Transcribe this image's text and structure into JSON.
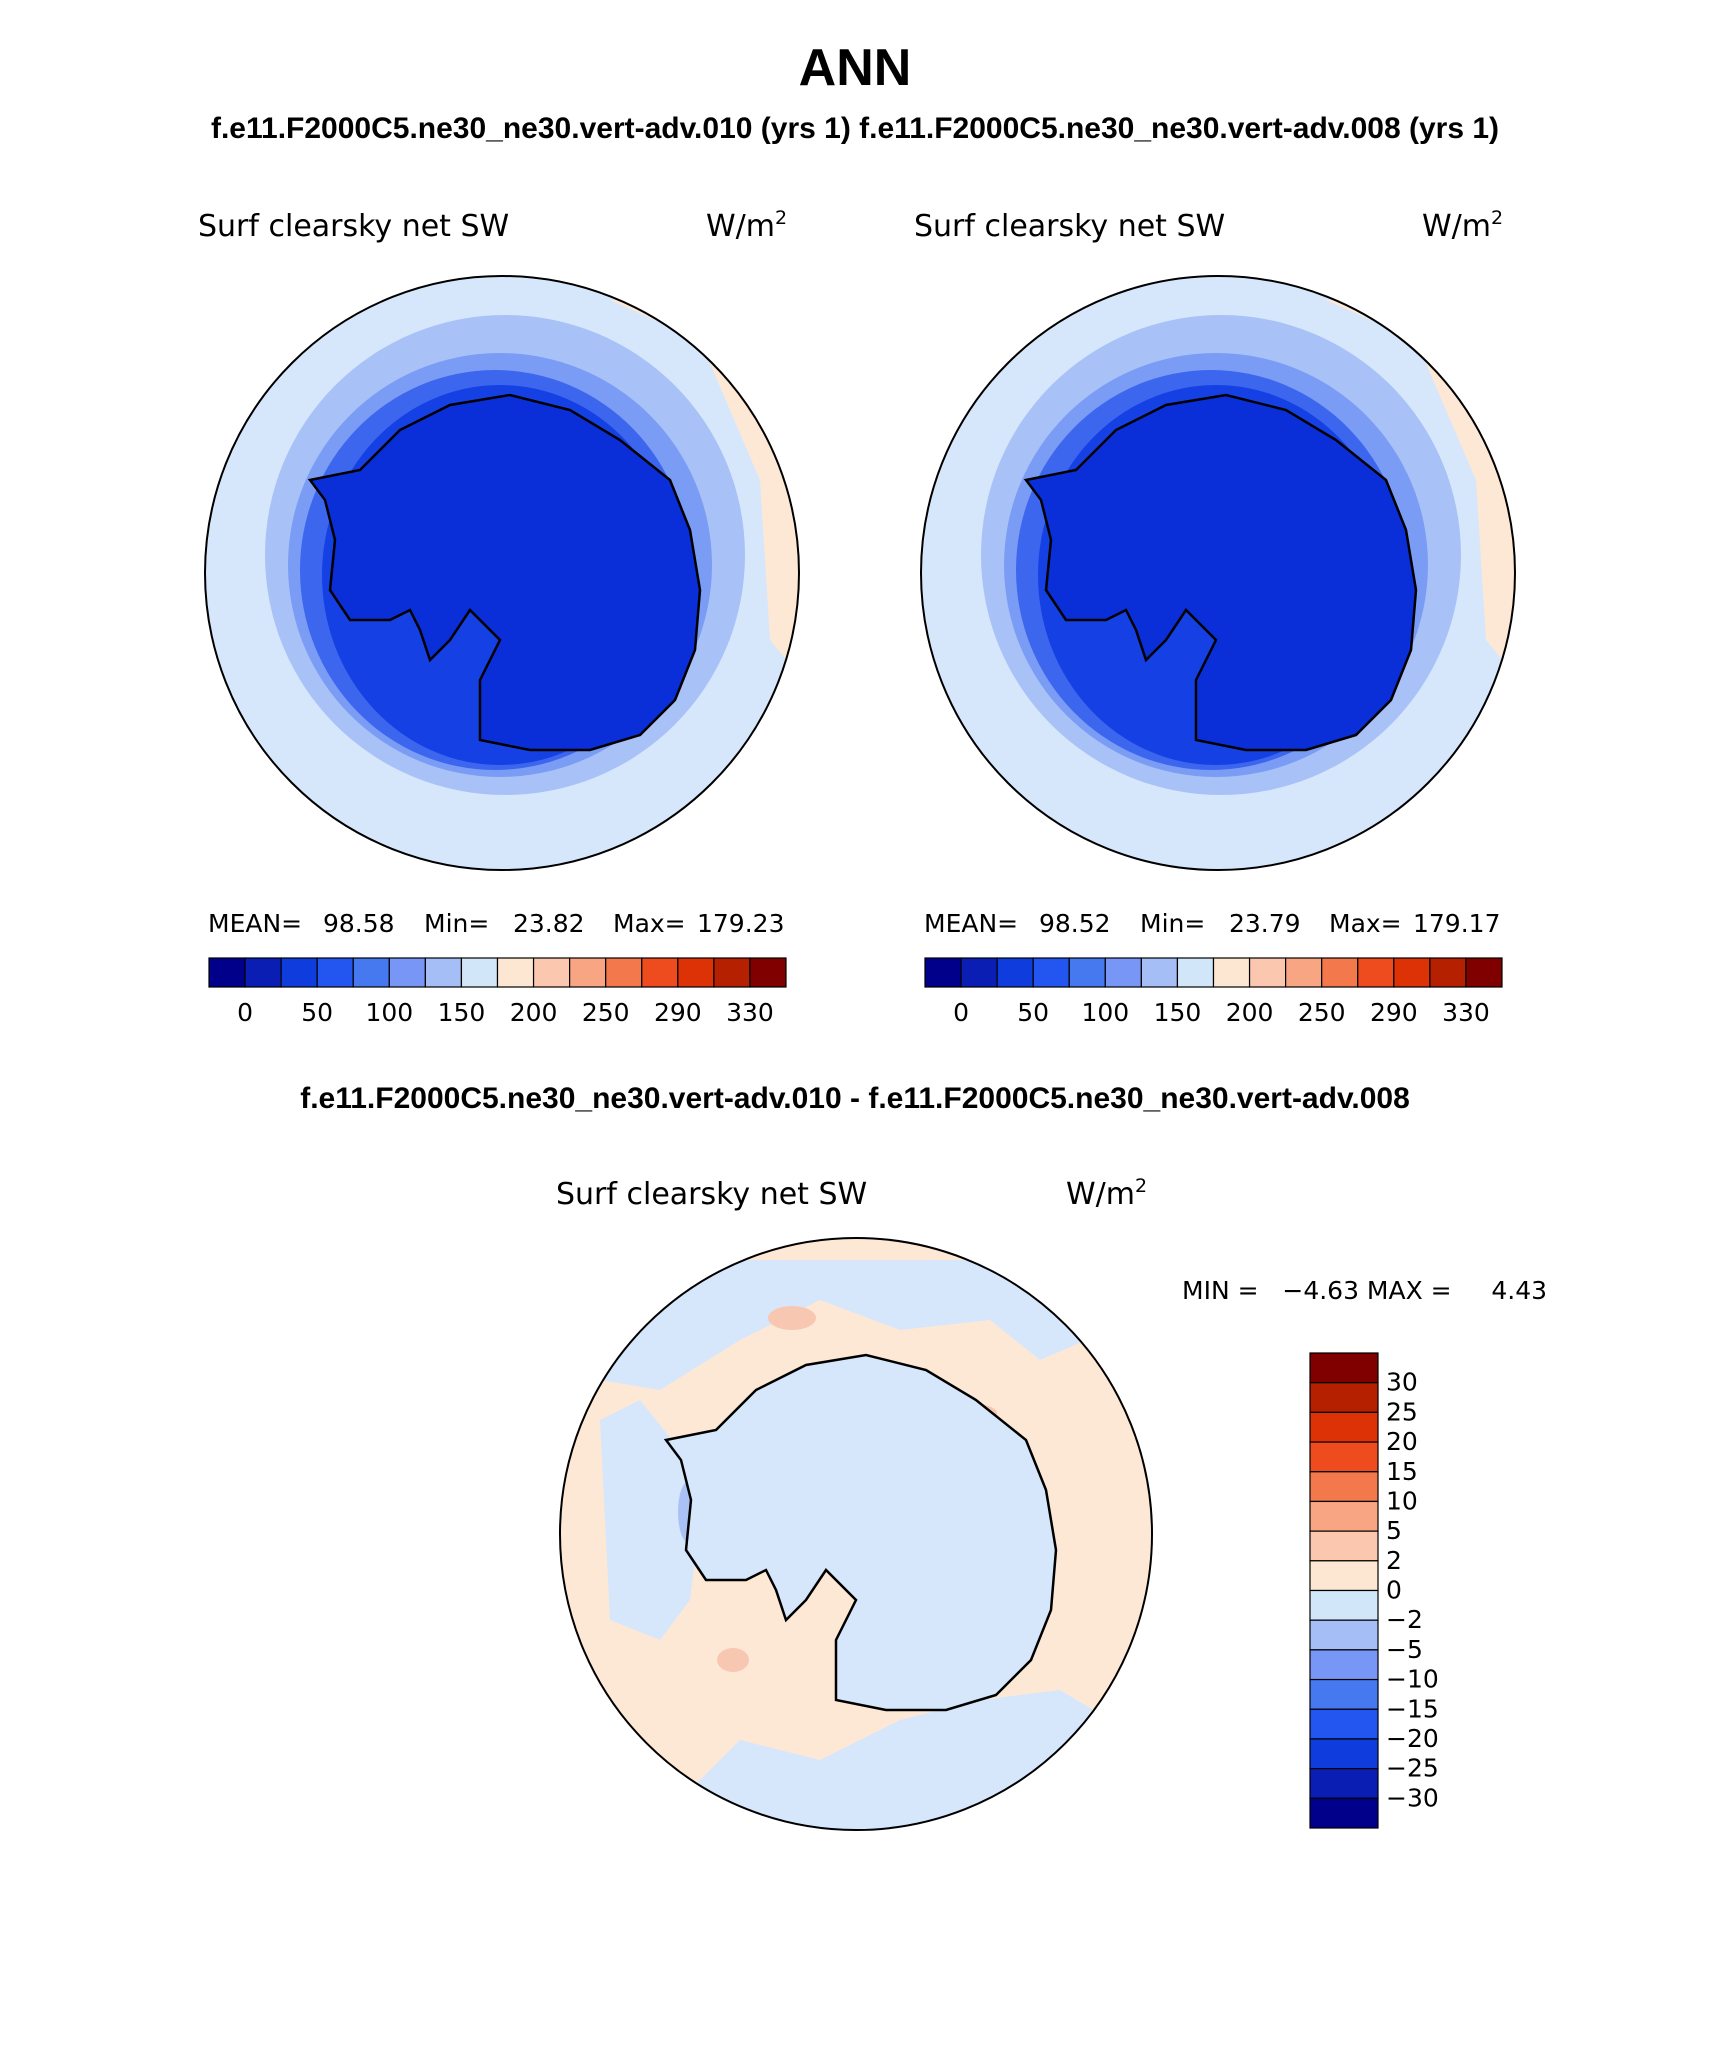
{
  "page": {
    "title": "ANN",
    "subtitle": "f.e11.F2000C5.ne30_ne30.vert-adv.010 (yrs 1) f.e11.F2000C5.ne30_ne30.vert-adv.008 (yrs 1)",
    "diff_title": "f.e11.F2000C5.ne30_ne30.vert-adv.010 - f.e11.F2000C5.ne30_ne30.vert-adv.008"
  },
  "panels": [
    {
      "variable": "Surf clearsky net SW",
      "units_base": "W/m",
      "units_exp": "2",
      "stats": {
        "mean_label": "MEAN=",
        "mean": "98.58",
        "min_label": "Min=",
        "min": "23.82",
        "max_label": "Max=",
        "max": "179.23"
      }
    },
    {
      "variable": "Surf clearsky net SW",
      "units_base": "W/m",
      "units_exp": "2",
      "stats": {
        "mean_label": "MEAN=",
        "mean": "98.52",
        "min_label": "Min=",
        "min": "23.79",
        "max_label": "Max=",
        "max": "179.17"
      }
    }
  ],
  "diff_panel": {
    "variable": "Surf clearsky net SW",
    "units_base": "W/m",
    "units_exp": "2",
    "minmax_text": "MIN =   −4.63 MAX =     4.43"
  },
  "colorbar_main": {
    "labels": [
      "0",
      "50",
      "100",
      "150",
      "200",
      "250",
      "290",
      "330"
    ],
    "colors": [
      "#00008b",
      "#0a1eb4",
      "#0f3cdc",
      "#2355f0",
      "#4678f0",
      "#7896f5",
      "#a5bef5",
      "#d2e6fa",
      "#fde6d2",
      "#fbc8af",
      "#f7a582",
      "#f3784b",
      "#ee4b1e",
      "#dc3205",
      "#b42000",
      "#800000"
    ]
  },
  "colorbar_diff": {
    "labels": [
      "30",
      "25",
      "20",
      "15",
      "10",
      "5",
      "2",
      "0",
      "−2",
      "−5",
      "−10",
      "−15",
      "−20",
      "−25",
      "−30"
    ],
    "colors": [
      "#800000",
      "#b42000",
      "#dc3205",
      "#ee4b1e",
      "#f3784b",
      "#f7a582",
      "#fbc8af",
      "#fde6d2",
      "#d2e6fa",
      "#a5bef5",
      "#7896f5",
      "#4678f0",
      "#2355f0",
      "#0f3cdc",
      "#0a1eb4",
      "#00008b"
    ]
  },
  "map_colors": {
    "ice": "#0a2ed8",
    "ring1": "#1540e3",
    "ring2": "#3c66ee",
    "ring3": "#7a9cf5",
    "ring4": "#a8c2f8",
    "ocean": "#d6e7fb",
    "warm": "#fde8d6",
    "warm2": "#f8c7b2",
    "cool2": "#a9c1f5"
  }
}
